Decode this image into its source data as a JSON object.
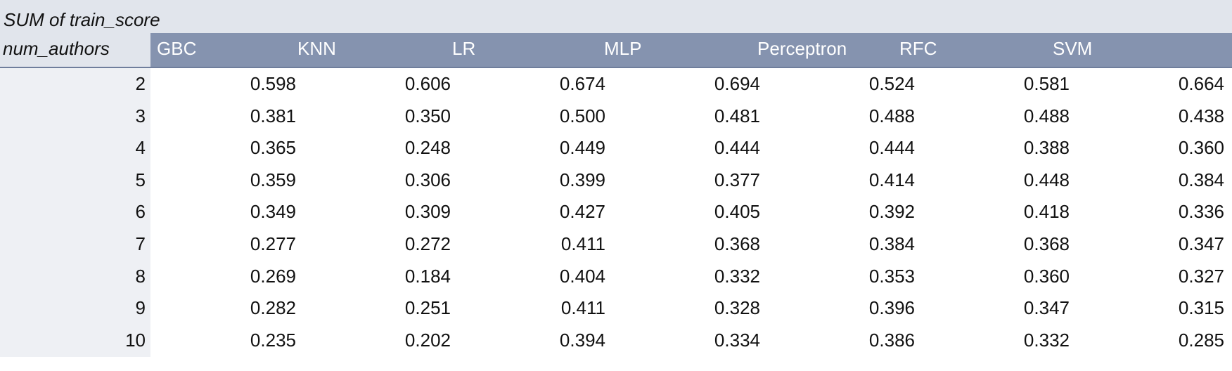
{
  "pivot": {
    "title": "SUM of train_score",
    "row_field": "num_authors",
    "columns": [
      "GBC",
      "KNN",
      "LR",
      "MLP",
      "Perceptron",
      "RFC",
      "SVM"
    ],
    "rows": [
      {
        "label": "2",
        "values": [
          "0.598",
          "0.606",
          "0.674",
          "0.694",
          "0.524",
          "0.581",
          "0.664"
        ]
      },
      {
        "label": "3",
        "values": [
          "0.381",
          "0.350",
          "0.500",
          "0.481",
          "0.488",
          "0.488",
          "0.438"
        ]
      },
      {
        "label": "4",
        "values": [
          "0.365",
          "0.248",
          "0.449",
          "0.444",
          "0.444",
          "0.388",
          "0.360"
        ]
      },
      {
        "label": "5",
        "values": [
          "0.359",
          "0.306",
          "0.399",
          "0.377",
          "0.414",
          "0.448",
          "0.384"
        ]
      },
      {
        "label": "6",
        "values": [
          "0.349",
          "0.309",
          "0.427",
          "0.405",
          "0.392",
          "0.418",
          "0.336"
        ]
      },
      {
        "label": "7",
        "values": [
          "0.277",
          "0.272",
          "0.411",
          "0.368",
          "0.384",
          "0.368",
          "0.347"
        ]
      },
      {
        "label": "8",
        "values": [
          "0.269",
          "0.184",
          "0.404",
          "0.332",
          "0.353",
          "0.360",
          "0.327"
        ]
      },
      {
        "label": "9",
        "values": [
          "0.282",
          "0.251",
          "0.411",
          "0.328",
          "0.396",
          "0.347",
          "0.315"
        ]
      },
      {
        "label": "10",
        "values": [
          "0.235",
          "0.202",
          "0.394",
          "0.334",
          "0.386",
          "0.332",
          "0.285"
        ]
      }
    ]
  },
  "colors": {
    "header_band": "#8593af",
    "title_band": "#e1e5ec",
    "row_label_band": "#eef0f4"
  }
}
